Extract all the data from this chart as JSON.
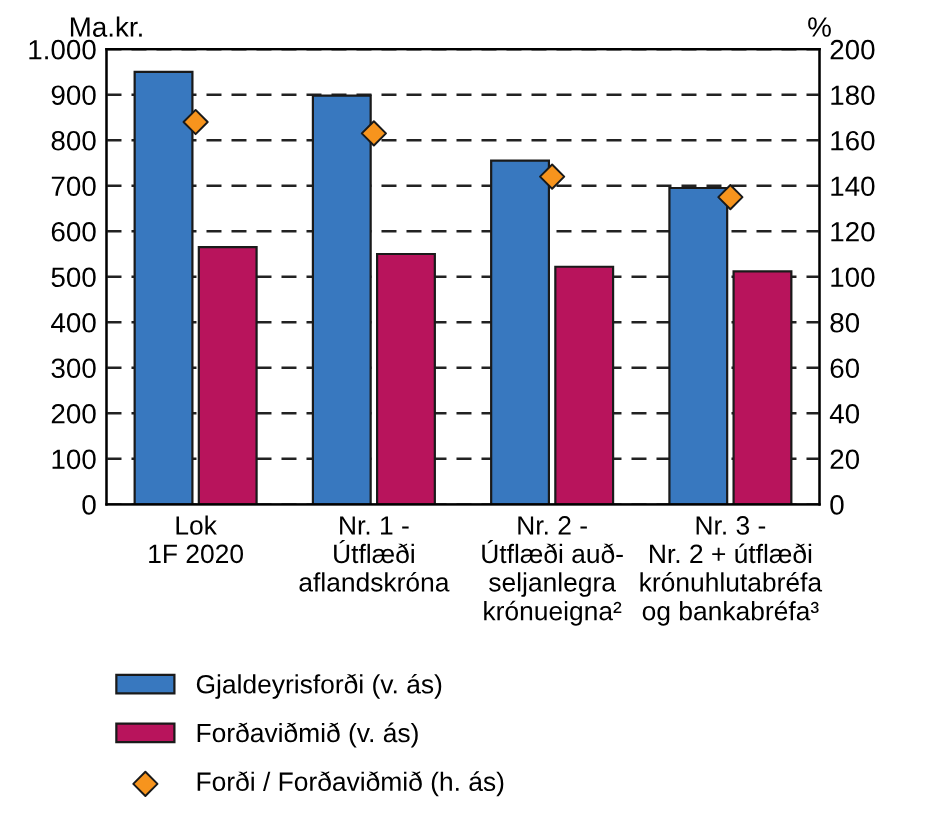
{
  "chart_data": {
    "type": "bar",
    "ylabel": "Ma.kr.",
    "y2label": "%",
    "categories": [
      "Lok\n1F 2020",
      "Nr. 1 -\nÚtflæði\naflandskróna",
      "Nr. 2 -\nÚtflæði auð-\nseljanlegra\nkrónueigna²",
      "Nr. 3 -\nNr. 2 + útflæði\nkrónuhlutabréfa\nog bankabréfa³"
    ],
    "series": [
      {
        "name": "Gjaldeyrisforði (v. ás)",
        "color": "#3878bf",
        "values": [
          950,
          898,
          755,
          695
        ]
      },
      {
        "name": "Forðaviðmið (v. ás)",
        "color": "#b8145c",
        "values": [
          565,
          550,
          522,
          512
        ]
      },
      {
        "name": "Forði / Forðaviðmið (h. ás)",
        "type": "scatter",
        "axis": "y2",
        "color": "#f7941d",
        "marker": "diamond",
        "values": [
          168,
          163,
          144,
          135
        ]
      }
    ],
    "ylim": [
      0,
      1000
    ],
    "yticks": [
      0,
      100,
      200,
      300,
      400,
      500,
      600,
      700,
      800,
      900,
      {
        "value": 1000,
        "label": "1.000"
      }
    ],
    "y2lim": [
      0,
      200
    ],
    "y2ticks": [
      0,
      20,
      40,
      60,
      80,
      100,
      120,
      140,
      160,
      180,
      200
    ],
    "grid": "y",
    "legend": "bottom"
  }
}
